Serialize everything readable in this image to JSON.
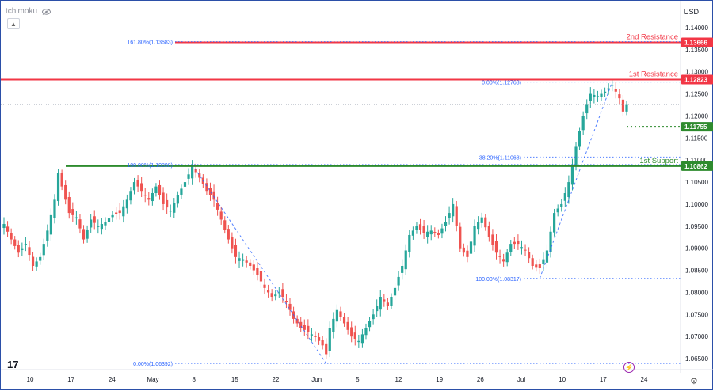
{
  "header": {
    "symbol": "tchimoku",
    "currency": "USD"
  },
  "branding": {
    "logo_text": "17"
  },
  "icons": {
    "visibility": "eye-slash-icon",
    "collapse": "chevron-up-icon",
    "settings": "gear-icon",
    "alert": "lightning-icon"
  },
  "colors": {
    "up": "#26a69a",
    "down": "#ef5350",
    "resistance": "#f23645",
    "support": "#2e8b2e",
    "fib": "#2962ff"
  },
  "chart_data": {
    "type": "candlestick",
    "title": "",
    "ylim": [
      1.0625,
      1.1425
    ],
    "y_ticks": [
      "1.14000",
      "1.13500",
      "1.13000",
      "1.12500",
      "1.12000",
      "1.11500",
      "1.11000",
      "1.10500",
      "1.10000",
      "1.09500",
      "1.09000",
      "1.08500",
      "1.08000",
      "1.07500",
      "1.07000",
      "1.06500"
    ],
    "x_ticks": [
      "10",
      "17",
      "24",
      "May",
      "8",
      "15",
      "22",
      "Jun",
      "5",
      "12",
      "19",
      "26",
      "Jul",
      "10",
      "17",
      "24"
    ],
    "close_path": [
      [
        0,
        1.0955
      ],
      [
        2,
        1.092
      ],
      [
        4,
        1.089
      ],
      [
        6,
        1.091
      ],
      [
        8,
        1.086
      ],
      [
        10,
        1.088
      ],
      [
        12,
        1.094
      ],
      [
        14,
        1.101
      ],
      [
        15,
        1.107
      ],
      [
        16,
        1.104
      ],
      [
        18,
        1.098
      ],
      [
        20,
        1.097
      ],
      [
        22,
        1.092
      ],
      [
        24,
        1.0965
      ],
      [
        26,
        1.095
      ],
      [
        28,
        1.096
      ],
      [
        30,
        1.0975
      ],
      [
        32,
        1.098
      ],
      [
        34,
        1.101
      ],
      [
        36,
        1.105
      ],
      [
        38,
        1.103
      ],
      [
        40,
        1.101
      ],
      [
        42,
        1.104
      ],
      [
        44,
        1.1
      ],
      [
        46,
        1.0985
      ],
      [
        48,
        1.102
      ],
      [
        50,
        1.105
      ],
      [
        52,
        1.1085
      ],
      [
        54,
        1.106
      ],
      [
        56,
        1.103
      ],
      [
        58,
        1.101
      ],
      [
        60,
        1.0965
      ],
      [
        62,
        1.092
      ],
      [
        64,
        1.088
      ],
      [
        66,
        1.0875
      ],
      [
        68,
        1.086
      ],
      [
        70,
        1.084
      ],
      [
        72,
        1.081
      ],
      [
        74,
        1.079
      ],
      [
        76,
        1.08
      ],
      [
        78,
        1.078
      ],
      [
        80,
        1.074
      ],
      [
        82,
        1.072
      ],
      [
        84,
        1.071
      ],
      [
        86,
        1.07
      ],
      [
        88,
        1.068
      ],
      [
        89,
        1.066
      ],
      [
        90,
        1.072
      ],
      [
        92,
        1.076
      ],
      [
        94,
        1.073
      ],
      [
        96,
        1.07
      ],
      [
        98,
        1.069
      ],
      [
        100,
        1.072
      ],
      [
        102,
        1.075
      ],
      [
        104,
        1.079
      ],
      [
        106,
        1.077
      ],
      [
        108,
        1.081
      ],
      [
        110,
        1.086
      ],
      [
        112,
        1.093
      ],
      [
        114,
        1.095
      ],
      [
        116,
        1.0935
      ],
      [
        118,
        1.094
      ],
      [
        120,
        1.093
      ],
      [
        122,
        1.096
      ],
      [
        124,
        1.1
      ],
      [
        126,
        1.09
      ],
      [
        128,
        1.088
      ],
      [
        130,
        1.095
      ],
      [
        132,
        1.097
      ],
      [
        134,
        1.0925
      ],
      [
        136,
        1.089
      ],
      [
        138,
        1.087
      ],
      [
        140,
        1.091
      ],
      [
        142,
        1.091
      ],
      [
        144,
        1.0895
      ],
      [
        146,
        1.086
      ],
      [
        148,
        1.0855
      ],
      [
        150,
        1.0895
      ],
      [
        152,
        1.098
      ],
      [
        154,
        1.1
      ],
      [
        156,
        1.105
      ],
      [
        158,
        1.113
      ],
      [
        160,
        1.12
      ],
      [
        162,
        1.125
      ],
      [
        164,
        1.1245
      ],
      [
        166,
        1.1255
      ],
      [
        168,
        1.127
      ],
      [
        170,
        1.124
      ],
      [
        171,
        1.121
      ],
      [
        172,
        1.1225
      ]
    ],
    "horizontal_levels": [
      {
        "label": "2nd Resistance",
        "value": 1.13666,
        "price_tag": "1.13666",
        "color": "#f23645"
      },
      {
        "label": "1st Resistance",
        "value": 1.12823,
        "price_tag": "1.12823",
        "color": "#f23645"
      },
      {
        "label": "",
        "value": 1.11755,
        "price_tag": "1.11755",
        "color": "#2e8b2e",
        "style": "dotted"
      },
      {
        "label": "1st Support",
        "value": 1.10862,
        "price_tag": "1.10862",
        "color": "#2e8b2e"
      }
    ],
    "fib_labels": [
      {
        "text": "161.80%(1.13683)",
        "value": 1.13683
      },
      {
        "text": "0.00%(1.12768)",
        "value": 1.12768
      },
      {
        "text": "38.20%(1.11068)",
        "value": 1.11068
      },
      {
        "text": "100.00%(1.10898)",
        "value": 1.10898
      },
      {
        "text": "100.00%(1.08317)",
        "value": 1.08317
      },
      {
        "text": "0.00%(1.06392)",
        "value": 1.06392
      }
    ],
    "grid": false
  }
}
